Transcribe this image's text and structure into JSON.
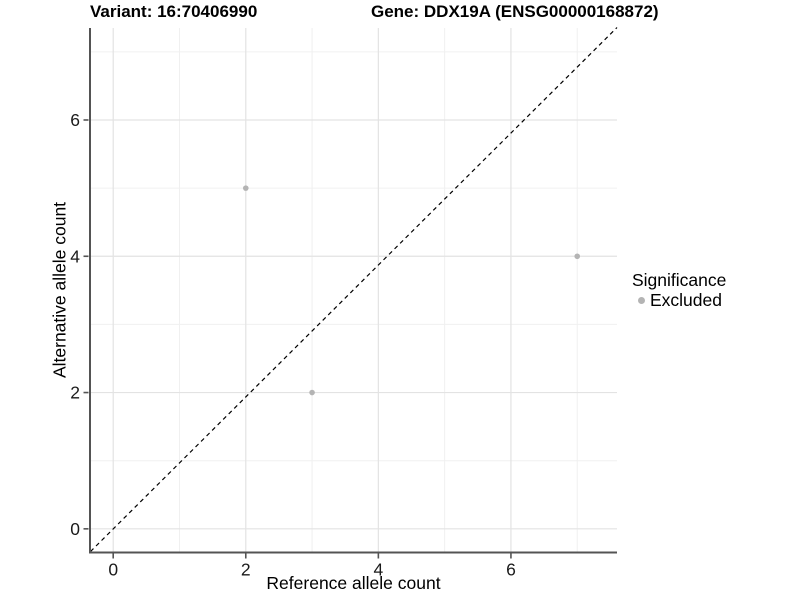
{
  "chart_data": {
    "type": "scatter",
    "title_left": "Variant: 16:70406990",
    "title_right": "Gene: DDX19A (ENSG00000168872)",
    "xlabel": "Reference allele count",
    "ylabel": "Alternative allele count",
    "xlim": [
      -0.35,
      7.6
    ],
    "ylim": [
      -0.34,
      7.35
    ],
    "x_ticks": [
      0,
      2,
      4,
      6
    ],
    "y_ticks": [
      0,
      2,
      4,
      6
    ],
    "x_minor_ticks": [
      1,
      3,
      5,
      7
    ],
    "y_minor_ticks": [
      1,
      3,
      5,
      7
    ],
    "grid": "major+minor",
    "legend": {
      "position": "right",
      "title": "Significance",
      "items": [
        {
          "label": "Excluded",
          "color": "#b4b4b4"
        }
      ]
    },
    "reference_line": {
      "kind": "identity",
      "slope": 1,
      "intercept": 0,
      "style": "dashed",
      "color": "#000000"
    },
    "series": [
      {
        "name": "Excluded",
        "color": "#b4b4b4",
        "points": [
          [
            2,
            5
          ],
          [
            3,
            2
          ],
          [
            7,
            4
          ]
        ]
      }
    ],
    "point_radius": 2.8,
    "colors": {
      "axis_line": "#545454",
      "grid_major": "#e3e3e3",
      "grid_minor": "#f0f0f0",
      "tick_text": "#1a1a1a",
      "background": "#ffffff"
    }
  }
}
